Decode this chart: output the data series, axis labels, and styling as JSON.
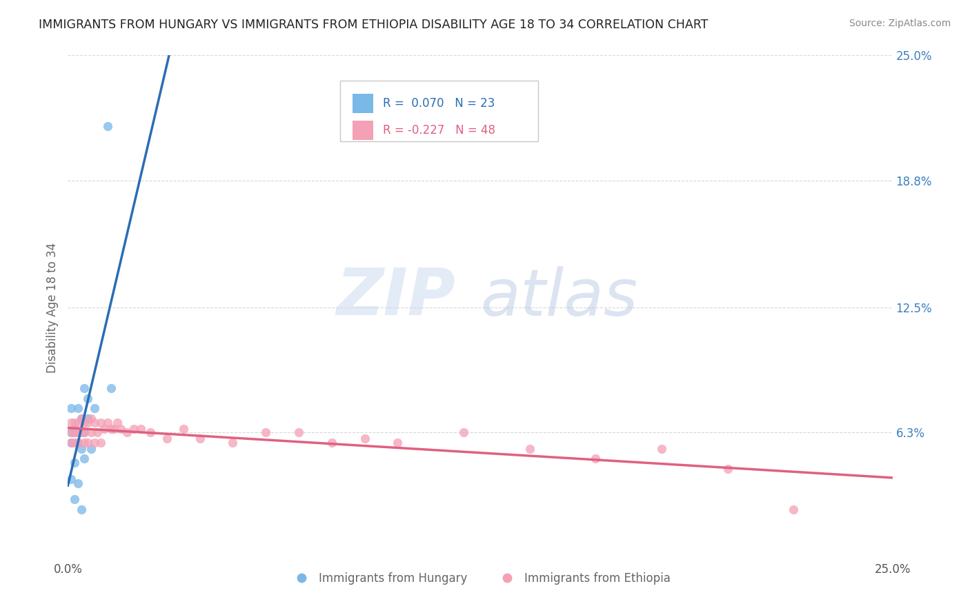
{
  "title": "IMMIGRANTS FROM HUNGARY VS IMMIGRANTS FROM ETHIOPIA DISABILITY AGE 18 TO 34 CORRELATION CHART",
  "source": "Source: ZipAtlas.com",
  "ylabel": "Disability Age 18 to 34",
  "right_yticks": [
    0.0,
    0.063,
    0.125,
    0.188,
    0.25
  ],
  "right_yticklabels": [
    "",
    "6.3%",
    "12.5%",
    "18.8%",
    "25.0%"
  ],
  "xmin": 0.0,
  "xmax": 0.25,
  "ymin": 0.0,
  "ymax": 0.25,
  "series1_label": "Immigrants from Hungary",
  "series1_color": "#7ab8e8",
  "series1_R": 0.07,
  "series1_N": 23,
  "series1_x": [
    0.012,
    0.005,
    0.013,
    0.006,
    0.003,
    0.001,
    0.004,
    0.006,
    0.002,
    0.001,
    0.005,
    0.002,
    0.001,
    0.003,
    0.004,
    0.007,
    0.005,
    0.002,
    0.001,
    0.003,
    0.008,
    0.002,
    0.004
  ],
  "series1_y": [
    0.215,
    0.085,
    0.085,
    0.08,
    0.075,
    0.075,
    0.07,
    0.07,
    0.065,
    0.063,
    0.063,
    0.063,
    0.058,
    0.058,
    0.055,
    0.055,
    0.05,
    0.048,
    0.04,
    0.038,
    0.075,
    0.03,
    0.025
  ],
  "series2_label": "Immigrants from Ethiopia",
  "series2_color": "#f4a0b5",
  "series2_R": -0.227,
  "series2_N": 48,
  "series2_x": [
    0.001,
    0.001,
    0.001,
    0.002,
    0.002,
    0.002,
    0.003,
    0.003,
    0.003,
    0.004,
    0.004,
    0.005,
    0.005,
    0.005,
    0.006,
    0.006,
    0.007,
    0.007,
    0.008,
    0.008,
    0.009,
    0.01,
    0.01,
    0.011,
    0.012,
    0.013,
    0.014,
    0.015,
    0.016,
    0.018,
    0.02,
    0.022,
    0.025,
    0.03,
    0.035,
    0.04,
    0.05,
    0.06,
    0.07,
    0.08,
    0.09,
    0.1,
    0.12,
    0.14,
    0.16,
    0.18,
    0.2,
    0.22
  ],
  "series2_y": [
    0.068,
    0.063,
    0.058,
    0.068,
    0.063,
    0.058,
    0.068,
    0.063,
    0.058,
    0.07,
    0.063,
    0.068,
    0.063,
    0.058,
    0.068,
    0.058,
    0.07,
    0.063,
    0.068,
    0.058,
    0.063,
    0.068,
    0.058,
    0.065,
    0.068,
    0.065,
    0.065,
    0.068,
    0.065,
    0.063,
    0.065,
    0.065,
    0.063,
    0.06,
    0.065,
    0.06,
    0.058,
    0.063,
    0.063,
    0.058,
    0.06,
    0.058,
    0.063,
    0.055,
    0.05,
    0.055,
    0.045,
    0.025
  ],
  "series2_outlier_x": [
    0.22
  ],
  "series2_outlier_y": [
    0.025
  ],
  "watermark_zip": "ZIP",
  "watermark_atlas": "atlas",
  "bg_color": "#ffffff",
  "grid_color": "#d8d8d8",
  "title_color": "#222222",
  "source_color": "#888888",
  "axis_label_color": "#666666",
  "tick_color": "#3a7fc1",
  "legend_border_color": "#c8c8c8",
  "series1_line_color": "#2a6db5",
  "series2_line_color": "#e06080"
}
